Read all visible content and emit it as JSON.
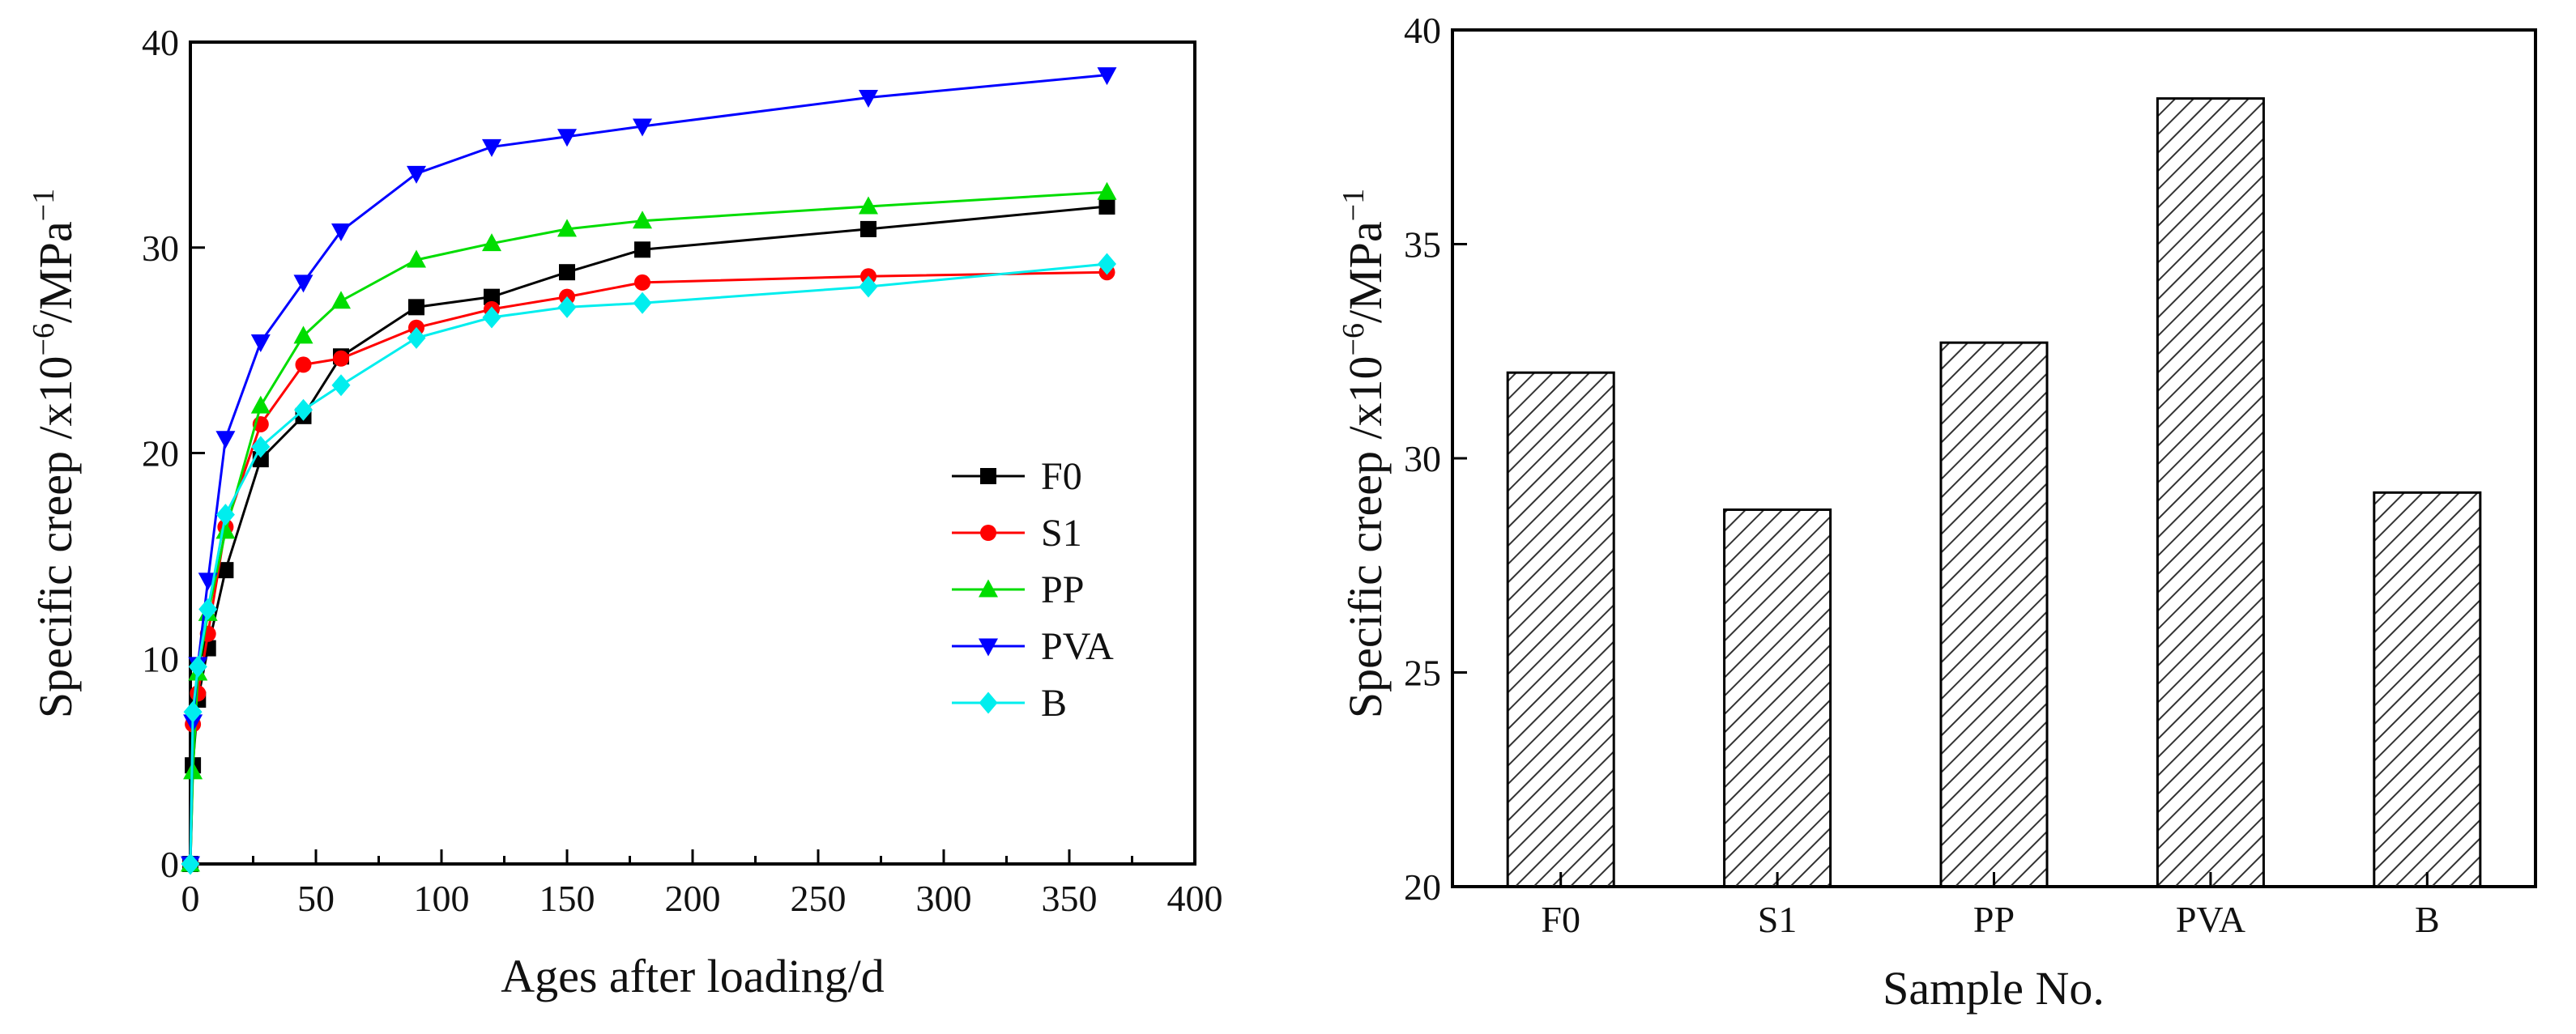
{
  "chart_data": [
    {
      "type": "line",
      "xlabel": "Ages after loading/d",
      "ylabel_parts": [
        "Specific creep /x10",
        "−6",
        "/MPa",
        "−1"
      ],
      "xlim": [
        0,
        400
      ],
      "ylim": [
        0,
        40
      ],
      "xticks": [
        0,
        50,
        100,
        150,
        200,
        250,
        300,
        350,
        400
      ],
      "yticks": [
        0,
        10,
        20,
        30,
        40
      ],
      "grid": false,
      "legend_position": "center-right",
      "x": [
        0,
        1,
        3,
        7,
        14,
        28,
        45,
        60,
        90,
        120,
        150,
        180,
        270,
        365
      ],
      "series": [
        {
          "name": "F0",
          "color": "#000000",
          "marker": "square",
          "values": [
            0,
            4.8,
            8.0,
            10.5,
            14.3,
            19.7,
            21.8,
            24.7,
            27.1,
            27.6,
            28.8,
            29.9,
            30.9,
            32.0
          ]
        },
        {
          "name": "S1",
          "color": "#ff0000",
          "marker": "circle",
          "values": [
            0,
            6.8,
            8.3,
            11.2,
            16.4,
            21.4,
            24.3,
            24.6,
            26.1,
            27.0,
            27.6,
            28.3,
            28.6,
            28.8
          ]
        },
        {
          "name": "PP",
          "color": "#00dd00",
          "marker": "triangle-up",
          "values": [
            0,
            4.5,
            9.3,
            12.2,
            16.2,
            22.3,
            25.7,
            27.4,
            29.4,
            30.2,
            30.9,
            31.3,
            32.0,
            32.7
          ]
        },
        {
          "name": "PVA",
          "color": "#0000ff",
          "marker": "triangle-down",
          "values": [
            0,
            6.9,
            9.7,
            13.8,
            20.7,
            25.4,
            28.3,
            30.8,
            33.6,
            34.9,
            35.4,
            35.9,
            37.3,
            38.4
          ]
        },
        {
          "name": "B",
          "color": "#00eeee",
          "marker": "diamond",
          "values": [
            0,
            7.4,
            9.6,
            12.4,
            17.0,
            20.3,
            22.1,
            23.3,
            25.6,
            26.6,
            27.1,
            27.3,
            28.1,
            29.2
          ]
        }
      ]
    },
    {
      "type": "bar",
      "xlabel": "Sample No.",
      "ylabel_parts": [
        "Specific creep /x10",
        "−6",
        "/MPa",
        "−1"
      ],
      "categories": [
        "F0",
        "S1",
        "PP",
        "PVA",
        "B"
      ],
      "values": [
        32.0,
        28.8,
        32.7,
        38.4,
        29.2
      ],
      "ylim": [
        20,
        40
      ],
      "yticks": [
        20,
        25,
        30,
        35,
        40
      ],
      "bar_fill": "diagonal-hatch",
      "grid": false
    }
  ]
}
